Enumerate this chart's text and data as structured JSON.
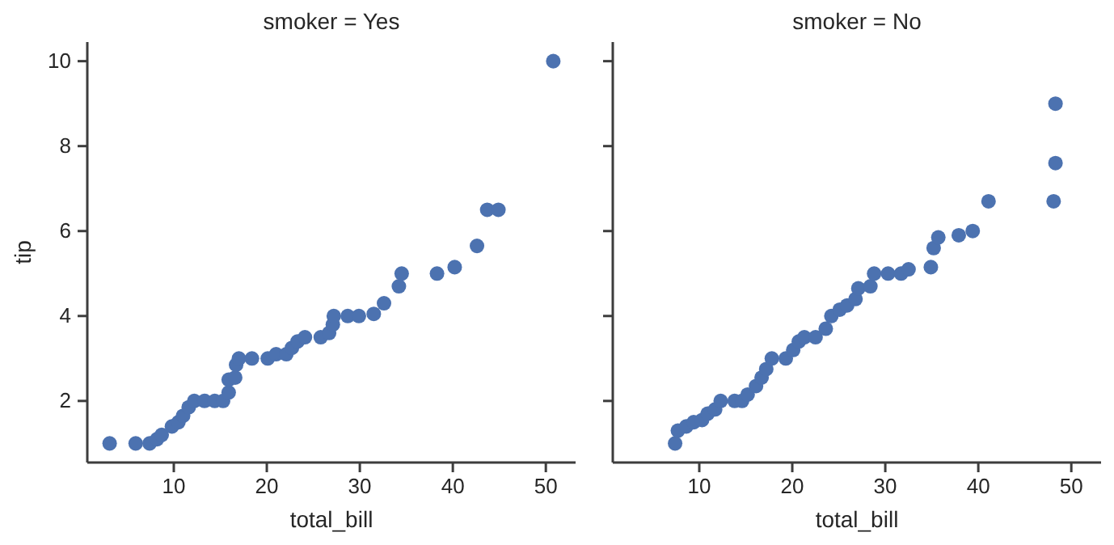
{
  "chart_data": [
    {
      "type": "scatter",
      "title": "smoker = Yes",
      "xlabel": "total_bill",
      "ylabel": "tip",
      "marker": "circle",
      "color": "#4c72b0",
      "x": [
        3.1,
        5.9,
        7.4,
        8.2,
        8.7,
        9.8,
        10.5,
        11.0,
        11.6,
        12.2,
        13.3,
        14.4,
        15.3,
        15.9,
        15.9,
        16.6,
        16.7,
        17.0,
        18.4,
        20.1,
        21.0,
        22.1,
        22.7,
        23.3,
        24.1,
        25.8,
        26.7,
        27.1,
        27.2,
        28.7,
        29.9,
        31.5,
        32.6,
        34.2,
        34.5,
        38.3,
        40.2,
        42.6,
        43.7,
        44.9,
        50.8
      ],
      "values": [
        1.0,
        1.0,
        1.0,
        1.1,
        1.2,
        1.4,
        1.5,
        1.65,
        1.85,
        2.0,
        2.0,
        2.0,
        2.0,
        2.2,
        2.5,
        2.55,
        2.85,
        3.0,
        3.0,
        3.0,
        3.1,
        3.1,
        3.25,
        3.4,
        3.5,
        3.5,
        3.6,
        3.8,
        4.0,
        4.0,
        4.0,
        4.05,
        4.3,
        4.7,
        5.0,
        5.0,
        5.15,
        5.65,
        6.5,
        6.5,
        10.0
      ],
      "xlim": [
        0.7,
        53.2
      ],
      "ylim": [
        0.55,
        10.45
      ],
      "xticks": [
        10,
        20,
        30,
        40,
        50
      ],
      "yticks": [
        2,
        4,
        6,
        8,
        10
      ]
    },
    {
      "type": "scatter",
      "title": "smoker = No",
      "xlabel": "total_bill",
      "marker": "circle",
      "color": "#4c72b0",
      "tick_labels": "x",
      "x": [
        7.4,
        7.7,
        8.6,
        9.4,
        10.3,
        10.9,
        11.7,
        12.3,
        13.8,
        14.6,
        15.2,
        16.1,
        16.7,
        17.2,
        17.8,
        19.3,
        20.1,
        20.7,
        21.3,
        22.5,
        23.6,
        24.2,
        25.1,
        25.9,
        26.8,
        27.1,
        28.4,
        28.8,
        30.3,
        31.7,
        32.5,
        34.9,
        35.2,
        35.7,
        37.9,
        39.4,
        41.1,
        48.1,
        48.3,
        48.3
      ],
      "values": [
        1.0,
        1.3,
        1.4,
        1.5,
        1.55,
        1.7,
        1.8,
        2.0,
        2.0,
        2.0,
        2.15,
        2.35,
        2.55,
        2.75,
        3.0,
        3.0,
        3.2,
        3.4,
        3.5,
        3.5,
        3.7,
        4.0,
        4.15,
        4.25,
        4.4,
        4.65,
        4.7,
        5.0,
        5.0,
        5.0,
        5.1,
        5.15,
        5.6,
        5.85,
        5.9,
        6.0,
        6.7,
        6.7,
        7.6,
        9.0
      ],
      "xlim": [
        0.7,
        53.2
      ],
      "ylim": [
        0.55,
        10.45
      ],
      "xticks": [
        10,
        20,
        30,
        40,
        50
      ],
      "yticks": [
        2,
        4,
        6,
        8,
        10
      ]
    }
  ]
}
